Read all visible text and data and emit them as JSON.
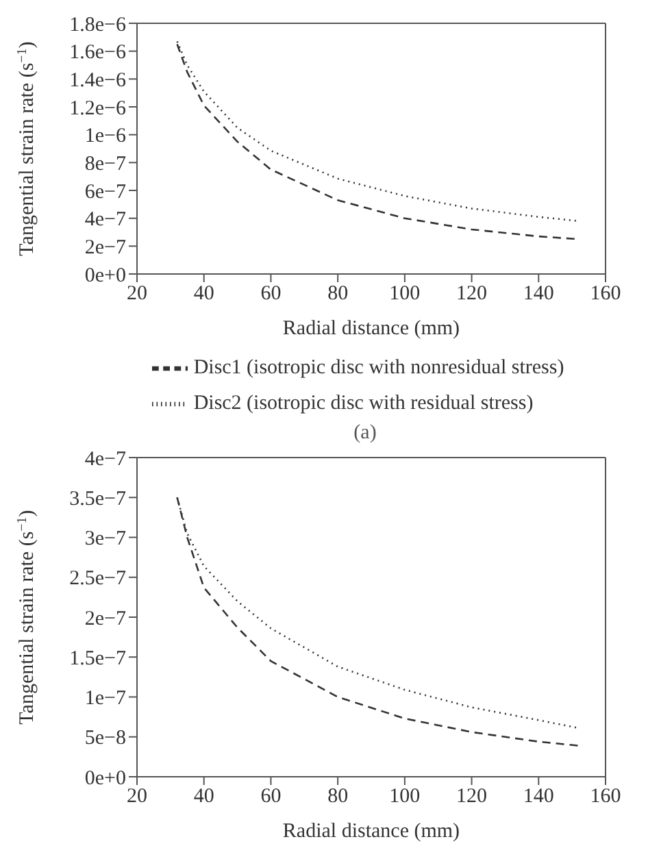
{
  "chart_data": [
    {
      "type": "line",
      "xlabel": "Radial distance (mm)",
      "ylabel": "Tangential strain rate (s$^{−1}$)",
      "xlim": [
        20,
        160
      ],
      "xticks": [
        20,
        40,
        60,
        80,
        100,
        120,
        140,
        160
      ],
      "ylim": [
        0,
        1.8e-06
      ],
      "yticks": [
        {
          "value": 0,
          "label": "0e+0"
        },
        {
          "value": 2e-07,
          "label": "2e−7"
        },
        {
          "value": 4e-07,
          "label": "4e−7"
        },
        {
          "value": 6e-07,
          "label": "6e−7"
        },
        {
          "value": 8e-07,
          "label": "8e−7"
        },
        {
          "value": 1e-06,
          "label": "1e−6"
        },
        {
          "value": 1.2e-06,
          "label": "1.2e−6"
        },
        {
          "value": 1.4e-06,
          "label": "1.4e−6"
        },
        {
          "value": 1.6e-06,
          "label": "1.6e−6"
        },
        {
          "value": 1.8e-06,
          "label": "1.8e−6"
        }
      ],
      "grid": false,
      "legend": "bottom",
      "marker": "none",
      "annotations": [
        "(a)"
      ],
      "x": [
        32,
        35,
        40,
        50,
        60,
        80,
        100,
        120,
        140,
        152
      ],
      "series": [
        {
          "name": "Disc1 (isotropic disc with nonresidual stress)",
          "color": "#333333",
          "line_style": "dashed",
          "values": [
            1.65e-06,
            1.45e-06,
            1.21e-06,
            9.5e-07,
            7.5e-07,
            5.3e-07,
            4e-07,
            3.2e-07,
            2.7e-07,
            2.5e-07
          ]
        },
        {
          "name": "Disc2 (isotropic disc with residual stress)",
          "color": "#333333",
          "line_style": "dotted",
          "values": [
            1.67e-06,
            1.5e-06,
            1.31e-06,
            1.05e-06,
            8.85e-07,
            6.85e-07,
            5.6e-07,
            4.7e-07,
            4.1e-07,
            3.8e-07
          ]
        }
      ]
    },
    {
      "type": "line",
      "xlabel": "Radial distance (mm)",
      "ylabel": "Tangential strain rate (s$^{−1}$)",
      "xlim": [
        20,
        160
      ],
      "xticks": [
        20,
        40,
        60,
        80,
        100,
        120,
        140,
        160
      ],
      "ylim": [
        0,
        4e-07
      ],
      "yticks": [
        {
          "value": 0,
          "label": "0e+0"
        },
        {
          "value": 5e-08,
          "label": "5e−8"
        },
        {
          "value": 1e-07,
          "label": "1e−7"
        },
        {
          "value": 1.5e-07,
          "label": "1.5e−7"
        },
        {
          "value": 2e-07,
          "label": "2e−7"
        },
        {
          "value": 2.5e-07,
          "label": "2.5e−7"
        },
        {
          "value": 3e-07,
          "label": "3e−7"
        },
        {
          "value": 3.5e-07,
          "label": "3.5e−7"
        },
        {
          "value": 4e-07,
          "label": "4e−7"
        }
      ],
      "grid": false,
      "marker": "none",
      "x": [
        32,
        35,
        40,
        50,
        60,
        80,
        100,
        120,
        140,
        152
      ],
      "series": [
        {
          "color": "#333333",
          "line_style": "dashed",
          "values": [
            3.5e-07,
            3e-07,
            2.37e-07,
            1.87e-07,
            1.45e-07,
            1e-07,
            7.3e-08,
            5.6e-08,
            4.4e-08,
            3.9e-08
          ]
        },
        {
          "color": "#333333",
          "line_style": "dotted",
          "values": [
            3.5e-07,
            3.05e-07,
            2.64e-07,
            2.2e-07,
            1.86e-07,
            1.38e-07,
            1.09e-07,
            8.7e-08,
            7.1e-08,
            6.1e-08
          ]
        }
      ]
    }
  ]
}
